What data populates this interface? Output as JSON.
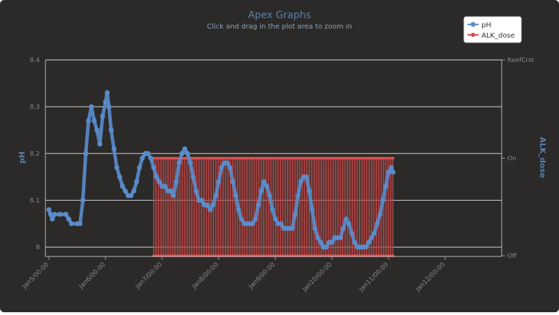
{
  "chart_data": {
    "type": "line",
    "title": "Apex Graphs",
    "subtitle": "Click and drag in the plot area to zoom in",
    "ylabel_left": "pH",
    "ylabel_right": "ALK_dose",
    "x_ticks": [
      "Jan5/00:00",
      "Jan6/00:00",
      "Jan7/00:00",
      "Jan8/00:00",
      "Jan9/00:00",
      "Jan10/00:00",
      "Jan11/00:00",
      "Jan12/00:00"
    ],
    "ylim_left": [
      7.98,
      8.4
    ],
    "y_ticks_left": [
      "8",
      "8.1",
      "8.2",
      "8.3",
      "8.4"
    ],
    "y_ticks_right": [
      "ReefCrst",
      "On",
      "Off"
    ],
    "legend_placement": "top-right",
    "grid": true,
    "colors": {
      "ph": "#5b8ccc",
      "alk": "#d94a4a",
      "background": "#2b2a29"
    },
    "series": [
      {
        "name": "pH",
        "points": [
          [
            0.0,
            8.08
          ],
          [
            0.03,
            8.07
          ],
          [
            0.06,
            8.06
          ],
          [
            0.1,
            8.07
          ],
          [
            0.2,
            8.07
          ],
          [
            0.3,
            8.07
          ],
          [
            0.35,
            8.06
          ],
          [
            0.4,
            8.05
          ],
          [
            0.5,
            8.05
          ],
          [
            0.55,
            8.05
          ],
          [
            0.6,
            8.1
          ],
          [
            0.65,
            8.2
          ],
          [
            0.7,
            8.27
          ],
          [
            0.75,
            8.3
          ],
          [
            0.8,
            8.27
          ],
          [
            0.85,
            8.25
          ],
          [
            0.9,
            8.22
          ],
          [
            0.95,
            8.28
          ],
          [
            1.0,
            8.31
          ],
          [
            1.03,
            8.33
          ],
          [
            1.06,
            8.3
          ],
          [
            1.1,
            8.25
          ],
          [
            1.15,
            8.21
          ],
          [
            1.2,
            8.17
          ],
          [
            1.25,
            8.15
          ],
          [
            1.3,
            8.13
          ],
          [
            1.35,
            8.12
          ],
          [
            1.4,
            8.11
          ],
          [
            1.45,
            8.11
          ],
          [
            1.5,
            8.12
          ],
          [
            1.55,
            8.14
          ],
          [
            1.6,
            8.17
          ],
          [
            1.65,
            8.19
          ],
          [
            1.7,
            8.2
          ],
          [
            1.75,
            8.2
          ],
          [
            1.8,
            8.19
          ],
          [
            1.85,
            8.17
          ],
          [
            1.9,
            8.15
          ],
          [
            1.95,
            8.14
          ],
          [
            2.0,
            8.13
          ],
          [
            2.05,
            8.13
          ],
          [
            2.1,
            8.12
          ],
          [
            2.15,
            8.12
          ],
          [
            2.2,
            8.11
          ],
          [
            2.25,
            8.14
          ],
          [
            2.3,
            8.18
          ],
          [
            2.35,
            8.2
          ],
          [
            2.4,
            8.21
          ],
          [
            2.45,
            8.2
          ],
          [
            2.5,
            8.18
          ],
          [
            2.55,
            8.15
          ],
          [
            2.6,
            8.12
          ],
          [
            2.65,
            8.1
          ],
          [
            2.7,
            8.1
          ],
          [
            2.75,
            8.09
          ],
          [
            2.8,
            8.09
          ],
          [
            2.85,
            8.08
          ],
          [
            2.9,
            8.09
          ],
          [
            2.95,
            8.11
          ],
          [
            3.0,
            8.14
          ],
          [
            3.05,
            8.17
          ],
          [
            3.1,
            8.18
          ],
          [
            3.15,
            8.18
          ],
          [
            3.2,
            8.17
          ],
          [
            3.25,
            8.14
          ],
          [
            3.3,
            8.11
          ],
          [
            3.35,
            8.08
          ],
          [
            3.4,
            8.06
          ],
          [
            3.45,
            8.05
          ],
          [
            3.5,
            8.05
          ],
          [
            3.55,
            8.05
          ],
          [
            3.6,
            8.05
          ],
          [
            3.65,
            8.06
          ],
          [
            3.7,
            8.09
          ],
          [
            3.75,
            8.12
          ],
          [
            3.8,
            8.14
          ],
          [
            3.85,
            8.13
          ],
          [
            3.9,
            8.11
          ],
          [
            3.95,
            8.08
          ],
          [
            4.0,
            8.06
          ],
          [
            4.05,
            8.05
          ],
          [
            4.1,
            8.05
          ],
          [
            4.15,
            8.04
          ],
          [
            4.2,
            8.04
          ],
          [
            4.25,
            8.04
          ],
          [
            4.3,
            8.04
          ],
          [
            4.35,
            8.07
          ],
          [
            4.4,
            8.11
          ],
          [
            4.45,
            8.14
          ],
          [
            4.5,
            8.15
          ],
          [
            4.55,
            8.15
          ],
          [
            4.6,
            8.12
          ],
          [
            4.65,
            8.08
          ],
          [
            4.7,
            8.04
          ],
          [
            4.75,
            8.02
          ],
          [
            4.8,
            8.01
          ],
          [
            4.85,
            8.0
          ],
          [
            4.9,
            8.0
          ],
          [
            4.95,
            8.01
          ],
          [
            5.0,
            8.01
          ],
          [
            5.05,
            8.02
          ],
          [
            5.1,
            8.02
          ],
          [
            5.15,
            8.02
          ],
          [
            5.2,
            8.04
          ],
          [
            5.25,
            8.06
          ],
          [
            5.3,
            8.05
          ],
          [
            5.35,
            8.03
          ],
          [
            5.4,
            8.01
          ],
          [
            5.45,
            8.0
          ],
          [
            5.5,
            8.0
          ],
          [
            5.55,
            8.0
          ],
          [
            5.6,
            8.0
          ],
          [
            5.65,
            8.01
          ],
          [
            5.7,
            8.02
          ],
          [
            5.75,
            8.03
          ],
          [
            5.8,
            8.05
          ],
          [
            5.85,
            8.07
          ],
          [
            5.9,
            8.1
          ],
          [
            5.95,
            8.13
          ],
          [
            6.0,
            8.16
          ],
          [
            6.05,
            8.17
          ],
          [
            6.08,
            8.16
          ]
        ]
      },
      {
        "name": "ALK_dose",
        "pulse_start": 1.85,
        "pulse_end": 6.08,
        "pulse_count": 100,
        "states": [
          "On",
          "Off"
        ]
      }
    ]
  }
}
